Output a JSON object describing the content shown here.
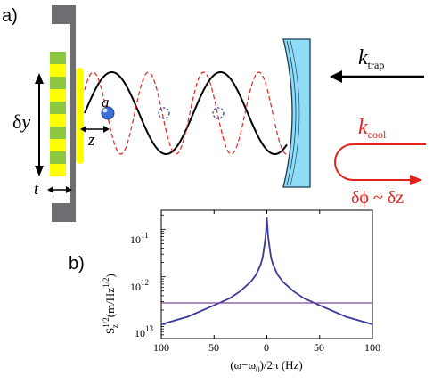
{
  "panel_a": {
    "label": "a)",
    "symbols": {
      "a": "a",
      "z": "z",
      "t": "t",
      "delta_y_prefix": "δ",
      "delta_y_var": "y",
      "k_trap_k": "k",
      "k_trap_sub": "trap",
      "k_cool_k": "k",
      "k_cool_sub": "cool",
      "delta_phi": "δϕ ~ δz"
    },
    "colors": {
      "yellow": "#ffff00",
      "green": "#8dc63f",
      "gray_wall": "#6d6e71",
      "mirror": "#8fdcf5",
      "trap_wave": "#000000",
      "cool_wave": "#e2231a",
      "atom": "#3a6fd8"
    }
  },
  "panel_b": {
    "label": "b)",
    "ylabel_main": "S",
    "ylabel_sub": "z",
    "ylabel_sup": "1/2",
    "ylabel_units": "(m/Hz",
    "ylabel_units_sup": "1/2",
    "ylabel_units_close": ")",
    "xlabel": "(ω−ω",
    "xlabel_sub": "0",
    "xlabel_rest": ")/2π (Hz)",
    "y_ticks": [
      {
        "base": "10",
        "exp": "11"
      },
      {
        "base": "10",
        "exp": "12"
      },
      {
        "base": "10",
        "exp": "13"
      }
    ],
    "x_ticks": [
      "100",
      "50",
      "0",
      "50",
      "100"
    ]
  },
  "chart_data": {
    "type": "line",
    "xlabel": "(ω−ω0)/2π (Hz)",
    "ylabel": "Sz^1/2 (m/Hz^1/2)",
    "xlim": [
      -100,
      100
    ],
    "y_scale": "log",
    "ylim_exponents": [
      -13.3,
      -10.6
    ],
    "series": [
      {
        "color": "#3a3a9a",
        "x": [
          -100,
          -75,
          -50,
          -35,
          -25,
          -15,
          -10,
          -6,
          -4,
          -2,
          -1,
          0,
          1,
          2,
          4,
          6,
          10,
          15,
          25,
          35,
          50,
          75,
          100
        ],
        "log10_y": [
          -13.0,
          -12.84,
          -12.6,
          -12.45,
          -12.3,
          -12.1,
          -11.95,
          -11.75,
          -11.6,
          -11.3,
          -11.1,
          -10.75,
          -11.1,
          -11.3,
          -11.6,
          -11.75,
          -11.95,
          -12.1,
          -12.3,
          -12.45,
          -12.6,
          -12.84,
          -13.0
        ]
      },
      {
        "color": "#7a4a9a",
        "x": [
          -100,
          100
        ],
        "log10_y": [
          -12.55,
          -12.55
        ]
      }
    ]
  }
}
